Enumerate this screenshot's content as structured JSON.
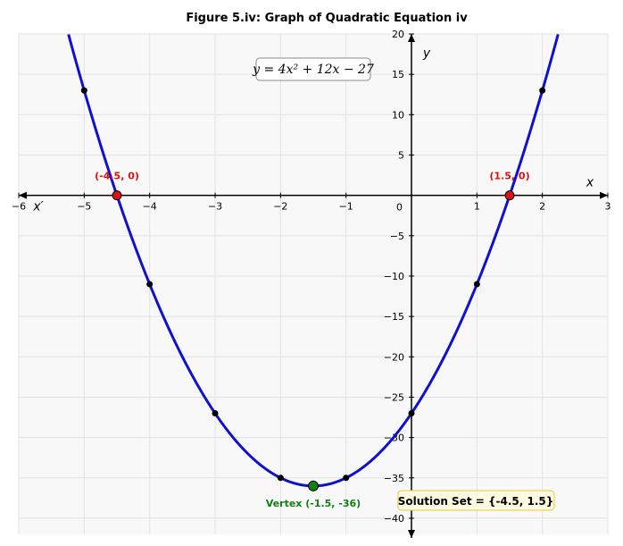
{
  "chart_data": {
    "type": "line",
    "title": "Figure 5.iv: Graph of Quadratic Equation iv",
    "equation_label": "y = 4x² + 12x − 27",
    "function": {
      "a": 4,
      "b": 12,
      "c": -27
    },
    "xlim": [
      -6,
      3
    ],
    "ylim": [
      -42,
      20
    ],
    "x_ticks": [
      -6,
      -5,
      -4,
      -3,
      -2,
      -1,
      0,
      1,
      2,
      3
    ],
    "y_ticks": [
      -40,
      -35,
      -30,
      -25,
      -20,
      -15,
      -10,
      -5,
      5,
      10,
      15,
      20
    ],
    "origin_label": "0",
    "x_axis_label": "x",
    "x_axis_neg_label": "x′",
    "y_axis_label": "y",
    "grid": true,
    "series": [
      {
        "color": "#1010d0",
        "points": [
          {
            "x": -5,
            "y": 13
          },
          {
            "x": -4,
            "y": -11
          },
          {
            "x": -3,
            "y": -27
          },
          {
            "x": -2,
            "y": -35
          },
          {
            "x": -1,
            "y": -35
          },
          {
            "x": 0,
            "y": -27
          },
          {
            "x": 1,
            "y": -11
          },
          {
            "x": 2,
            "y": 13
          }
        ]
      }
    ],
    "roots": [
      {
        "x": -4.5,
        "y": 0,
        "label": "(-4.5, 0)",
        "color": "#e01010"
      },
      {
        "x": 1.5,
        "y": 0,
        "label": "(1.5, 0)",
        "color": "#e01010"
      }
    ],
    "vertex": {
      "x": -1.5,
      "y": -36,
      "label": "Vertex (-1.5, -36)",
      "color": "#108010"
    },
    "solution_set": "Solution Set = {-4.5, 1.5}"
  }
}
